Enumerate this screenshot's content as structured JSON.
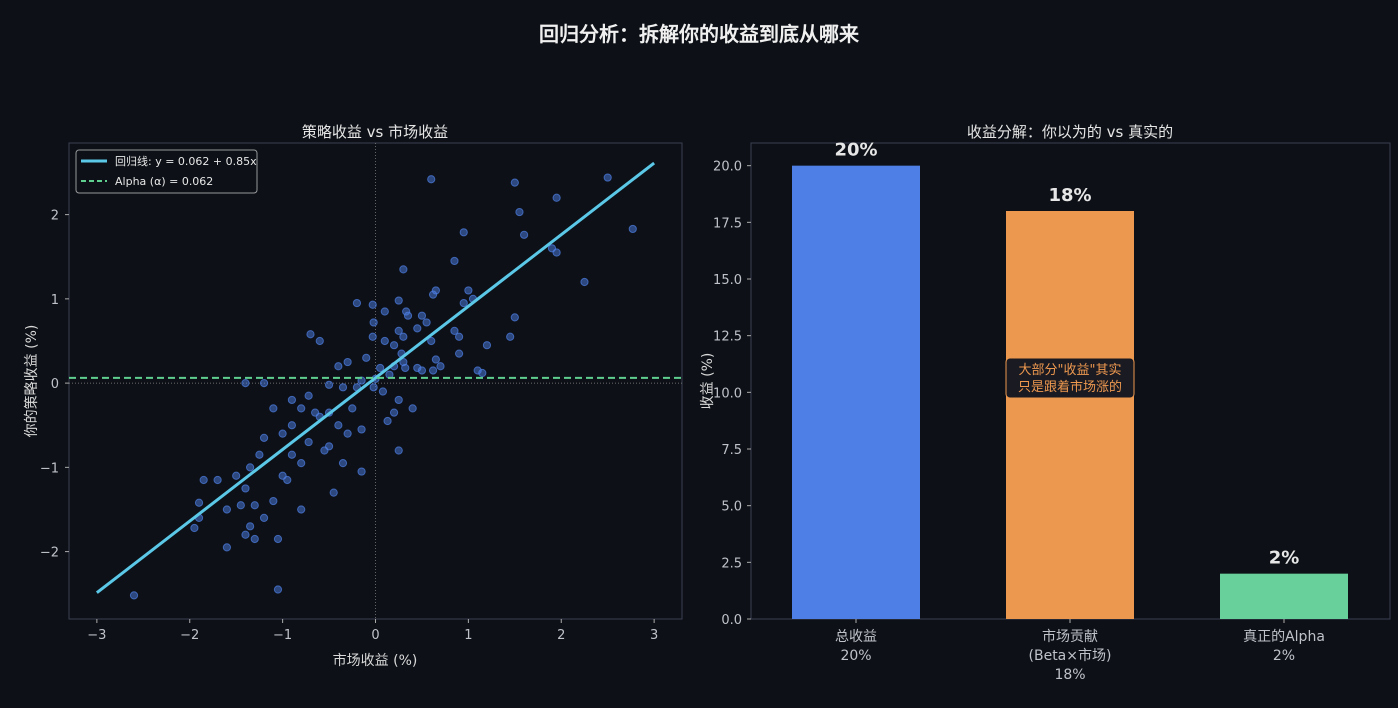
{
  "title": "回归分析：拆解你的收益到底从哪来",
  "chart_data": [
    {
      "type": "scatter",
      "title": "策略收益 vs 市场收益",
      "xlabel": "市场收益 (%)",
      "ylabel": "你的策略收益 (%)",
      "xlim": [
        -3.3,
        3.3
      ],
      "ylim": [
        -2.8,
        2.85
      ],
      "xticks": [
        -3,
        -2,
        -1,
        0,
        1,
        2,
        3
      ],
      "yticks": [
        -2,
        -1,
        0,
        1,
        2
      ],
      "grid": false,
      "legend_position": "top-left",
      "colors": {
        "points": "#4e7fe6",
        "regression": "#5bc8e8",
        "alpha": "#5fcf8f"
      },
      "regression": {
        "label": "回归线: y = 0.062 + 0.85x",
        "intercept": 0.062,
        "slope": 0.85,
        "x_range": [
          -3,
          3
        ]
      },
      "alpha_line": {
        "label": "Alpha (α) = 0.062",
        "y": 0.062
      },
      "points": [
        [
          0.6,
          2.42
        ],
        [
          1.5,
          2.38
        ],
        [
          2.5,
          2.44
        ],
        [
          1.95,
          2.2
        ],
        [
          1.55,
          2.03
        ],
        [
          2.77,
          1.83
        ],
        [
          0.95,
          1.79
        ],
        [
          1.6,
          1.76
        ],
        [
          1.9,
          1.6
        ],
        [
          1.95,
          1.55
        ],
        [
          2.25,
          1.2
        ],
        [
          0.85,
          1.45
        ],
        [
          0.3,
          1.35
        ],
        [
          1.0,
          1.1
        ],
        [
          1.05,
          1.0
        ],
        [
          0.95,
          0.95
        ],
        [
          1.5,
          0.78
        ],
        [
          1.45,
          0.55
        ],
        [
          0.62,
          1.05
        ],
        [
          0.65,
          1.1
        ],
        [
          0.25,
          0.98
        ],
        [
          0.33,
          0.85
        ],
        [
          0.35,
          0.8
        ],
        [
          0.1,
          0.85
        ],
        [
          -0.2,
          0.95
        ],
        [
          -0.03,
          0.93
        ],
        [
          0.5,
          0.8
        ],
        [
          0.55,
          0.72
        ],
        [
          0.25,
          0.62
        ],
        [
          0.3,
          0.55
        ],
        [
          0.45,
          0.65
        ],
        [
          -0.02,
          0.72
        ],
        [
          -0.03,
          0.55
        ],
        [
          0.1,
          0.5
        ],
        [
          0.2,
          0.45
        ],
        [
          0.28,
          0.35
        ],
        [
          0.3,
          0.25
        ],
        [
          0.6,
          0.5
        ],
        [
          0.85,
          0.62
        ],
        [
          0.9,
          0.55
        ],
        [
          1.2,
          0.45
        ],
        [
          1.15,
          0.12
        ],
        [
          1.1,
          0.15
        ],
        [
          0.7,
          0.2
        ],
        [
          0.5,
          0.15
        ],
        [
          0.45,
          0.18
        ],
        [
          0.62,
          0.15
        ],
        [
          0.32,
          0.18
        ],
        [
          0.2,
          0.2
        ],
        [
          0.15,
          0.1
        ],
        [
          0.05,
          0.18
        ],
        [
          0.0,
          0.05
        ],
        [
          -0.02,
          -0.05
        ],
        [
          0.08,
          -0.1
        ],
        [
          0.25,
          -0.2
        ],
        [
          0.2,
          -0.35
        ],
        [
          0.13,
          -0.45
        ],
        [
          0.25,
          -0.8
        ],
        [
          0.4,
          -0.3
        ],
        [
          0.65,
          0.28
        ],
        [
          0.9,
          0.35
        ],
        [
          -0.3,
          0.25
        ],
        [
          -0.4,
          0.2
        ],
        [
          -0.1,
          0.3
        ],
        [
          -0.6,
          0.5
        ],
        [
          -0.7,
          0.58
        ],
        [
          -0.5,
          -0.02
        ],
        [
          -0.35,
          -0.05
        ],
        [
          -0.2,
          -0.05
        ],
        [
          -0.15,
          0.03
        ],
        [
          -0.25,
          -0.3
        ],
        [
          -0.5,
          -0.35
        ],
        [
          -0.4,
          -0.5
        ],
        [
          -0.6,
          -0.4
        ],
        [
          -0.8,
          -0.3
        ],
        [
          -0.9,
          -0.2
        ],
        [
          -0.72,
          -0.15
        ],
        [
          -0.65,
          -0.35
        ],
        [
          -0.3,
          -0.6
        ],
        [
          -0.15,
          -0.55
        ],
        [
          -0.5,
          -0.75
        ],
        [
          -0.9,
          -0.5
        ],
        [
          -0.72,
          -0.7
        ],
        [
          -1.0,
          -0.6
        ],
        [
          -1.1,
          -0.3
        ],
        [
          -1.2,
          -0.65
        ],
        [
          -0.8,
          -0.95
        ],
        [
          -0.55,
          -0.8
        ],
        [
          -0.35,
          -0.95
        ],
        [
          -0.15,
          -1.05
        ],
        [
          -0.45,
          -1.3
        ],
        [
          -0.9,
          -0.85
        ],
        [
          -1.4,
          0.0
        ],
        [
          -1.2,
          0.0
        ],
        [
          -1.25,
          -0.85
        ],
        [
          -1.0,
          -1.1
        ],
        [
          -1.35,
          -1.0
        ],
        [
          -1.4,
          -1.25
        ],
        [
          -1.5,
          -1.1
        ],
        [
          -1.85,
          -1.15
        ],
        [
          -1.7,
          -1.15
        ],
        [
          -1.1,
          -1.4
        ],
        [
          -1.35,
          -1.7
        ],
        [
          -1.2,
          -1.6
        ],
        [
          -0.8,
          -1.5
        ],
        [
          -1.3,
          -1.45
        ],
        [
          -1.45,
          -1.45
        ],
        [
          -1.6,
          -1.5
        ],
        [
          -1.9,
          -1.42
        ],
        [
          -1.9,
          -1.6
        ],
        [
          -1.4,
          -1.8
        ],
        [
          -1.3,
          -1.85
        ],
        [
          -1.05,
          -1.85
        ],
        [
          -0.95,
          -1.15
        ],
        [
          -1.05,
          -2.45
        ],
        [
          -2.6,
          -2.52
        ],
        [
          -1.95,
          -1.72
        ],
        [
          -1.6,
          -1.95
        ]
      ]
    },
    {
      "type": "bar",
      "title": "收益分解：你以为的 vs 真实的",
      "ylabel": "收益 (%)",
      "ylim": [
        0,
        21
      ],
      "yticks": [
        "0.0",
        "2.5",
        "5.0",
        "7.5",
        "10.0",
        "12.5",
        "15.0",
        "17.5",
        "20.0"
      ],
      "categories": [
        [
          "总收益",
          "20%"
        ],
        [
          "市场贡献",
          "(Beta×市场)",
          "18%"
        ],
        [
          "真正的Alpha",
          "2%"
        ]
      ],
      "values": [
        20,
        18,
        2
      ],
      "data_labels": [
        "20%",
        "18%",
        "2%"
      ],
      "colors": [
        "#4e7fe6",
        "#ec984f",
        "#68d19b"
      ],
      "annotation": {
        "lines": [
          "大部分\"收益\"其实",
          "只是跟着市场涨的"
        ],
        "at_bar": 1,
        "y": 10.5,
        "color": "#ec984f"
      }
    }
  ]
}
